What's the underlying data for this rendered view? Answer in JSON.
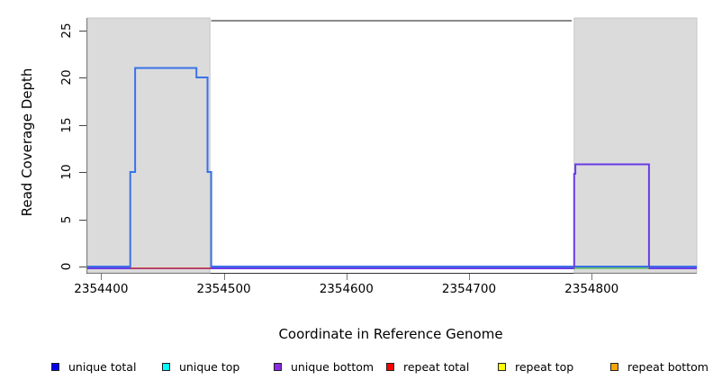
{
  "axes": {
    "x": {
      "title": "Coordinate in Reference Genome",
      "ticks": [
        2354400,
        2354500,
        2354600,
        2354700,
        2354800
      ],
      "range": [
        2354388,
        2354885
      ]
    },
    "y": {
      "title": "Read Coverage Depth",
      "ticks": [
        0,
        5,
        10,
        15,
        20,
        25
      ],
      "range": [
        0,
        26
      ]
    }
  },
  "legend": {
    "items": [
      {
        "key": "unique-total",
        "label": "unique total",
        "color": "#0000EE"
      },
      {
        "key": "unique-top",
        "label": "unique top",
        "color": "#00FFFF"
      },
      {
        "key": "unique-bottom",
        "label": "unique bottom",
        "color": "#8B2BE2"
      },
      {
        "key": "repeat-total",
        "label": "repeat total",
        "color": "#FF0000"
      },
      {
        "key": "repeat-top",
        "label": "repeat top",
        "color": "#FFFF00"
      },
      {
        "key": "repeat-bottom",
        "label": "repeat bottom",
        "color": "#FFA500"
      }
    ]
  },
  "chart_data": {
    "type": "line",
    "title": "",
    "xlabel": "Coordinate in Reference Genome",
    "ylabel": "Read Coverage Depth",
    "xlim": [
      2354388,
      2354885
    ],
    "ylim": [
      0,
      26
    ],
    "x_ticks": [
      2354400,
      2354500,
      2354600,
      2354700,
      2354800
    ],
    "y_ticks": [
      0,
      5,
      10,
      15,
      20,
      25
    ],
    "grid": false,
    "legend_position": "bottom",
    "shaded_repeat_regions": {
      "color": "#DBDBDB",
      "edge_color": "#C6C6C6",
      "regions": [
        [
          2354388,
          2354488
        ],
        [
          2354785,
          2354885
        ]
      ]
    },
    "top_boundary_line": {
      "y": 26,
      "x_from": 2354489,
      "x_to": 2354783,
      "color": "#8A8A8A"
    },
    "series": [
      {
        "key": "unique-total",
        "name": "unique total (step coverage, left repeat region)",
        "color": "#3A72E8",
        "points": [
          [
            2354388,
            0
          ],
          [
            2354423,
            0
          ],
          [
            2354423,
            10
          ],
          [
            2354427,
            10
          ],
          [
            2354427,
            21
          ],
          [
            2354477,
            21
          ],
          [
            2354477,
            20
          ],
          [
            2354486,
            20
          ],
          [
            2354486,
            10
          ],
          [
            2354489,
            10
          ],
          [
            2354489,
            0
          ],
          [
            2354885,
            0
          ]
        ]
      },
      {
        "key": "unique-bottom",
        "name": "unique bottom (step coverage, right repeat region)",
        "color": "#6A3BE4",
        "points": [
          [
            2354388,
            0
          ],
          [
            2354785,
            0
          ],
          [
            2354785,
            10
          ],
          [
            2354786,
            10
          ],
          [
            2354786,
            11
          ],
          [
            2354846,
            11
          ],
          [
            2354846,
            0
          ],
          [
            2354885,
            0
          ]
        ]
      },
      {
        "key": "repeat-total-segment",
        "name": "repeat total (zero-depth segment under left peak)",
        "color": "#CC4545",
        "points": [
          [
            2354423,
            0
          ],
          [
            2354489,
            0
          ]
        ]
      },
      {
        "key": "green-baseline-segment",
        "name": "green zero-depth segment under right peak",
        "color": "#5DBA5D",
        "points": [
          [
            2354785,
            0
          ],
          [
            2354846,
            0
          ]
        ]
      }
    ]
  }
}
